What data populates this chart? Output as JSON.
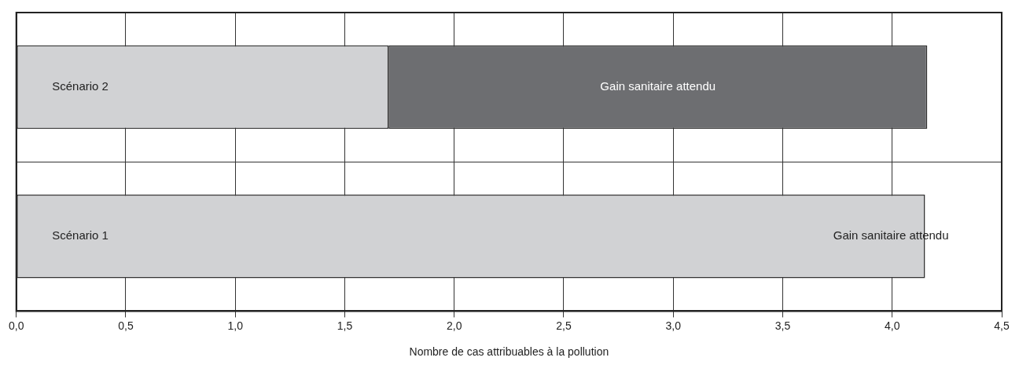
{
  "chart_data": {
    "type": "bar",
    "orientation": "horizontal",
    "stacked": true,
    "xlabel": "Nombre de cas attribuables à la pollution",
    "categories": [
      "Scénario 2",
      "Scénario 1"
    ],
    "series": [
      {
        "color": "#d1d2d4",
        "values": [
          1.7,
          4.15
        ]
      },
      {
        "color": "#6d6e71",
        "values": [
          2.46,
          0
        ],
        "value_labels": [
          "Gain sanitaire attendu",
          "Gain sanitaire attendu"
        ]
      }
    ],
    "xlim": [
      0,
      4.5
    ],
    "xticks": [
      {
        "value": 0,
        "label": "0,0"
      },
      {
        "value": 0.5,
        "label": "0,5"
      },
      {
        "value": 1,
        "label": "1,0"
      },
      {
        "value": 1.5,
        "label": "1,5"
      },
      {
        "value": 2,
        "label": "2,0"
      },
      {
        "value": 2.5,
        "label": "2,5"
      },
      {
        "value": 3,
        "label": "3,0"
      },
      {
        "value": 3.5,
        "label": "3,5"
      },
      {
        "value": 4,
        "label": "4,0"
      },
      {
        "value": 4.5,
        "label": "4,5"
      }
    ],
    "grid": true,
    "tick_labels": "x",
    "legend": false
  }
}
